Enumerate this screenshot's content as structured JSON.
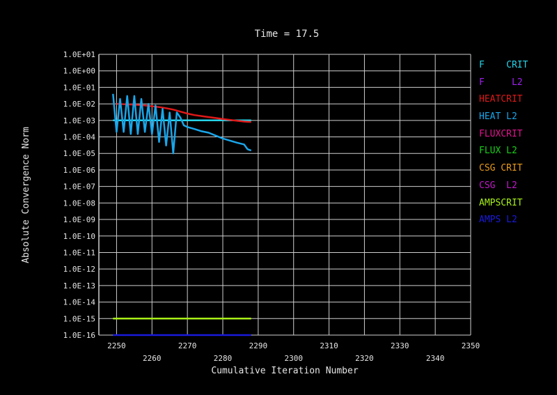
{
  "chart_data": {
    "type": "line",
    "title": "Time = 17.5",
    "xlabel": "Cumulative Iteration Number",
    "ylabel": "Absolute Convergence Norm",
    "xlim": [
      2245,
      2350
    ],
    "ylim_log10": [
      -16,
      1
    ],
    "y_scale": "log",
    "x_ticks_top": [
      "2250",
      "2270",
      "2290",
      "2310",
      "2330",
      "2350"
    ],
    "x_ticks_bottom": [
      "2260",
      "2280",
      "2300",
      "2320",
      "2340"
    ],
    "y_ticks": [
      "1.0E+01",
      "1.0E+00",
      "1.0E-01",
      "1.0E-02",
      "1.0E-03",
      "1.0E-04",
      "1.0E-05",
      "1.0E-06",
      "1.0E-07",
      "1.0E-08",
      "1.0E-09",
      "1.0E-10",
      "1.0E-11",
      "1.0E-12",
      "1.0E-13",
      "1.0E-14",
      "1.0E-15",
      "1.0E-16"
    ],
    "grid": true,
    "legend_position": "right",
    "legend": [
      {
        "label": "F    CRIT",
        "color": "#27d3e8"
      },
      {
        "label": "F     L2",
        "color": "#a020f0"
      },
      {
        "label": "HEATCRIT",
        "color": "#e01818"
      },
      {
        "label": "HEAT L2",
        "color": "#1aa6ea"
      },
      {
        "label": "FLUXCRIT",
        "color": "#e0158f"
      },
      {
        "label": "FLUX L2",
        "color": "#18d018"
      },
      {
        "label": "CSG CRIT",
        "color": "#e89a1a"
      },
      {
        "label": "CSG  L2",
        "color": "#c018c8"
      },
      {
        "label": "AMPSCRIT",
        "color": "#a8f018"
      },
      {
        "label": "AMPS L2",
        "color": "#1a1adc"
      }
    ],
    "series": [
      {
        "name": "F    CRIT",
        "color": "#27d3e8",
        "x": [
          2249,
          2288
        ],
        "y": [
          0.001,
          0.001
        ]
      },
      {
        "name": "HEATCRIT",
        "color": "#e01818",
        "x": [
          2250,
          2255,
          2258,
          2260,
          2262,
          2264,
          2266,
          2268,
          2270,
          2272,
          2275,
          2278,
          2280,
          2283,
          2286,
          2288
        ],
        "y": [
          0.01,
          0.009,
          0.008,
          0.0072,
          0.0064,
          0.0055,
          0.0045,
          0.0034,
          0.0026,
          0.0021,
          0.0017,
          0.0014,
          0.0012,
          0.001,
          0.00085,
          0.0008
        ]
      },
      {
        "name": "HEAT L2",
        "color": "#1aa6ea",
        "x": [
          2249,
          2250,
          2251,
          2252,
          2253,
          2254,
          2255,
          2256,
          2257,
          2258,
          2259,
          2260,
          2261,
          2262,
          2263,
          2264,
          2265,
          2266,
          2267,
          2268,
          2269,
          2270,
          2272,
          2274,
          2276,
          2278,
          2280,
          2282,
          2284,
          2286,
          2287,
          2288
        ],
        "y": [
          0.04,
          0.0002,
          0.02,
          0.0002,
          0.03,
          0.00015,
          0.03,
          0.00015,
          0.02,
          0.0002,
          0.01,
          0.00015,
          0.008,
          5e-05,
          0.005,
          3e-05,
          0.003,
          1e-05,
          0.003,
          0.0015,
          0.0005,
          0.0004,
          0.0003,
          0.00022,
          0.00018,
          0.00012,
          8e-05,
          6e-05,
          4.5e-05,
          3.5e-05,
          1.8e-05,
          1.5e-05
        ]
      },
      {
        "name": "AMPSCRIT",
        "color": "#a8f018",
        "x": [
          2249,
          2288
        ],
        "y": [
          1e-15,
          1e-15
        ]
      },
      {
        "name": "AMPS L2",
        "color": "#1a1adc",
        "x": [
          2249,
          2288
        ],
        "y": [
          1e-16,
          1e-16
        ]
      }
    ]
  }
}
